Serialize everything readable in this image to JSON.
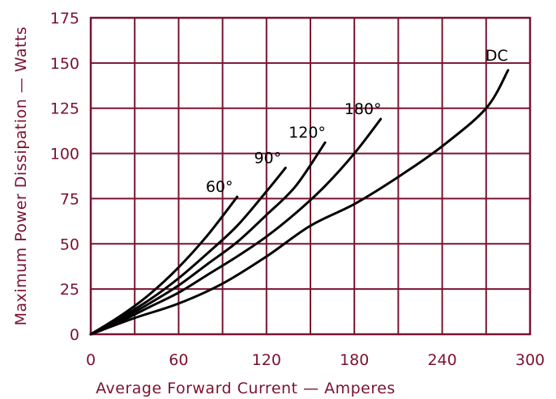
{
  "chart_data": {
    "type": "line",
    "xlabel": "Average Forward Current — Amperes",
    "ylabel": "Maximum Power Dissipation — Watts",
    "xlim": [
      0,
      300
    ],
    "ylim": [
      0,
      175
    ],
    "x_ticks": [
      0,
      60,
      120,
      180,
      240,
      300
    ],
    "y_ticks": [
      0,
      25,
      50,
      75,
      100,
      125,
      150,
      175
    ],
    "x_grid_step": 30,
    "y_grid_step": 25,
    "grid": true,
    "colors": {
      "axis": "#7a1230",
      "curve": "#000000"
    },
    "series": [
      {
        "name": "60°",
        "x": [
          0,
          20,
          40,
          60,
          80,
          100
        ],
        "y": [
          0,
          10,
          22,
          37,
          55,
          76
        ]
      },
      {
        "name": "90°",
        "x": [
          0,
          20,
          40,
          60,
          80,
          100,
          120,
          133
        ],
        "y": [
          0,
          9,
          19,
          31,
          45,
          60,
          79,
          92
        ]
      },
      {
        "name": "120°",
        "x": [
          0,
          20,
          40,
          60,
          80,
          100,
          120,
          140,
          160
        ],
        "y": [
          0,
          8,
          17,
          27,
          39,
          51,
          66,
          82,
          106
        ]
      },
      {
        "name": "180°",
        "x": [
          0,
          20,
          40,
          60,
          80,
          100,
          120,
          140,
          160,
          180,
          198
        ],
        "y": [
          0,
          7,
          15,
          23,
          33,
          43,
          54,
          67,
          82,
          100,
          119
        ]
      },
      {
        "name": "DC",
        "x": [
          0,
          30,
          60,
          90,
          120,
          150,
          180,
          210,
          240,
          270,
          285
        ],
        "y": [
          0,
          9,
          17,
          28,
          43,
          60,
          72,
          87,
          104,
          125,
          146
        ]
      }
    ]
  }
}
